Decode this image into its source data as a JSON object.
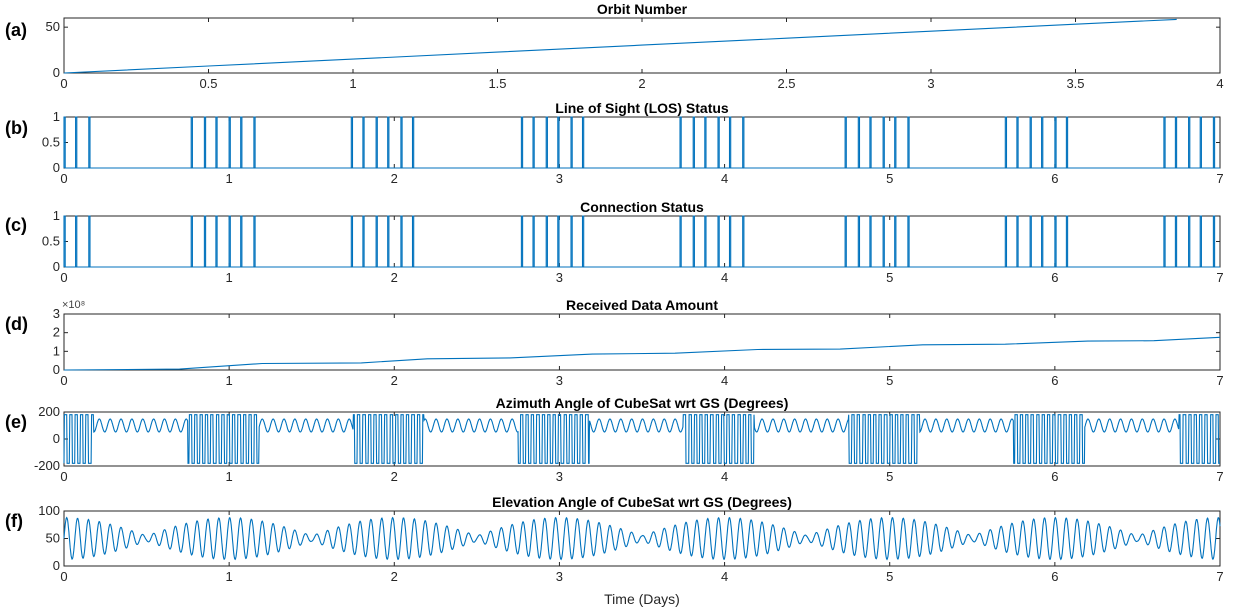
{
  "xlabel": "Time (Days)",
  "line_color": "#0072BD",
  "chart_data": [
    {
      "panel_label": "(a)",
      "type": "line",
      "title": "Orbit Number",
      "xlim": [
        0,
        4
      ],
      "ylim": [
        0,
        60
      ],
      "xticks": [
        "0",
        "0.5",
        "1",
        "1.5",
        "2",
        "2.5",
        "3",
        "3.5",
        "4"
      ],
      "yticks": [
        "0",
        "50"
      ],
      "series": [
        {
          "x": [
            0,
            0.5,
            1,
            1.5,
            2,
            2.5,
            3,
            3.5,
            3.85
          ],
          "y": [
            0,
            7.6,
            15.2,
            22.8,
            30.4,
            38.0,
            45.6,
            53.2,
            58.5
          ]
        }
      ]
    },
    {
      "panel_label": "(b)",
      "type": "line",
      "title": "Line of Sight (LOS) Status",
      "xlim": [
        0,
        7
      ],
      "ylim": [
        0,
        1
      ],
      "xticks": [
        "0",
        "1",
        "2",
        "3",
        "4",
        "5",
        "6",
        "7"
      ],
      "yticks": [
        "0",
        "0.5",
        "1"
      ],
      "pulse_days": [
        0.0,
        0.07,
        0.15,
        0.77,
        0.85,
        0.92,
        1.0,
        1.07,
        1.15,
        1.74,
        1.81,
        1.89,
        1.96,
        2.04,
        2.11,
        2.77,
        2.84,
        2.92,
        2.99,
        3.07,
        3.14,
        3.73,
        3.81,
        3.88,
        3.96,
        4.03,
        4.11,
        4.73,
        4.81,
        4.88,
        4.96,
        5.03,
        5.11,
        5.7,
        5.77,
        5.85,
        5.92,
        6.0,
        6.07,
        6.66,
        6.73,
        6.81,
        6.88,
        6.96
      ]
    },
    {
      "panel_label": "(c)",
      "type": "line",
      "title": "Connection Status",
      "xlim": [
        0,
        7
      ],
      "ylim": [
        0,
        1
      ],
      "xticks": [
        "0",
        "1",
        "2",
        "3",
        "4",
        "5",
        "6",
        "7"
      ],
      "yticks": [
        "0",
        "0.5",
        "1"
      ],
      "pulse_days": [
        0.0,
        0.07,
        0.15,
        0.77,
        0.85,
        0.92,
        1.0,
        1.07,
        1.15,
        1.74,
        1.81,
        1.89,
        1.96,
        2.04,
        2.11,
        2.77,
        2.84,
        2.92,
        2.99,
        3.07,
        3.14,
        3.73,
        3.81,
        3.88,
        3.96,
        4.03,
        4.11,
        4.73,
        4.81,
        4.88,
        4.96,
        5.03,
        5.11,
        5.7,
        5.77,
        5.85,
        5.92,
        6.0,
        6.07,
        6.66,
        6.73,
        6.81,
        6.88,
        6.96
      ]
    },
    {
      "panel_label": "(d)",
      "type": "line",
      "title": "Received Data Amount",
      "exponent_label": "×10⁸",
      "xlim": [
        0,
        7
      ],
      "ylim": [
        0,
        3
      ],
      "xticks": [
        "0",
        "1",
        "2",
        "3",
        "4",
        "5",
        "6",
        "7"
      ],
      "yticks": [
        "0",
        "1",
        "2",
        "3"
      ],
      "series": [
        {
          "x": [
            0,
            0.7,
            1.2,
            1.8,
            2.2,
            2.7,
            3.2,
            3.7,
            4.2,
            4.7,
            5.2,
            5.7,
            6.2,
            6.6,
            7.0
          ],
          "y": [
            0.0,
            0.05,
            0.35,
            0.38,
            0.6,
            0.65,
            0.85,
            0.9,
            1.1,
            1.12,
            1.35,
            1.38,
            1.55,
            1.57,
            1.75
          ]
        }
      ]
    },
    {
      "panel_label": "(e)",
      "type": "line",
      "title": "Azimuth Angle of CubeSat wrt GS (Degrees)",
      "xlim": [
        0,
        7
      ],
      "ylim": [
        -200,
        200
      ],
      "xticks": [
        "0",
        "1",
        "2",
        "3",
        "4",
        "5",
        "6",
        "7"
      ],
      "yticks": [
        "-200",
        "0",
        "200"
      ],
      "orbits_per_day": 15.2,
      "baseline": 100,
      "amplitude": 80,
      "wrap_limits": [
        -180,
        180
      ]
    },
    {
      "panel_label": "(f)",
      "type": "line",
      "title": "Elevation Angle of CubeSat wrt GS (Degrees)",
      "xlim": [
        0,
        7
      ],
      "ylim": [
        0,
        100
      ],
      "xticks": [
        "0",
        "1",
        "2",
        "3",
        "4",
        "5",
        "6",
        "7"
      ],
      "yticks": [
        "0",
        "50",
        "100"
      ],
      "orbits_per_day": 15.2,
      "baseline": 50,
      "amplitude_min": 5,
      "amplitude_max": 38
    }
  ]
}
